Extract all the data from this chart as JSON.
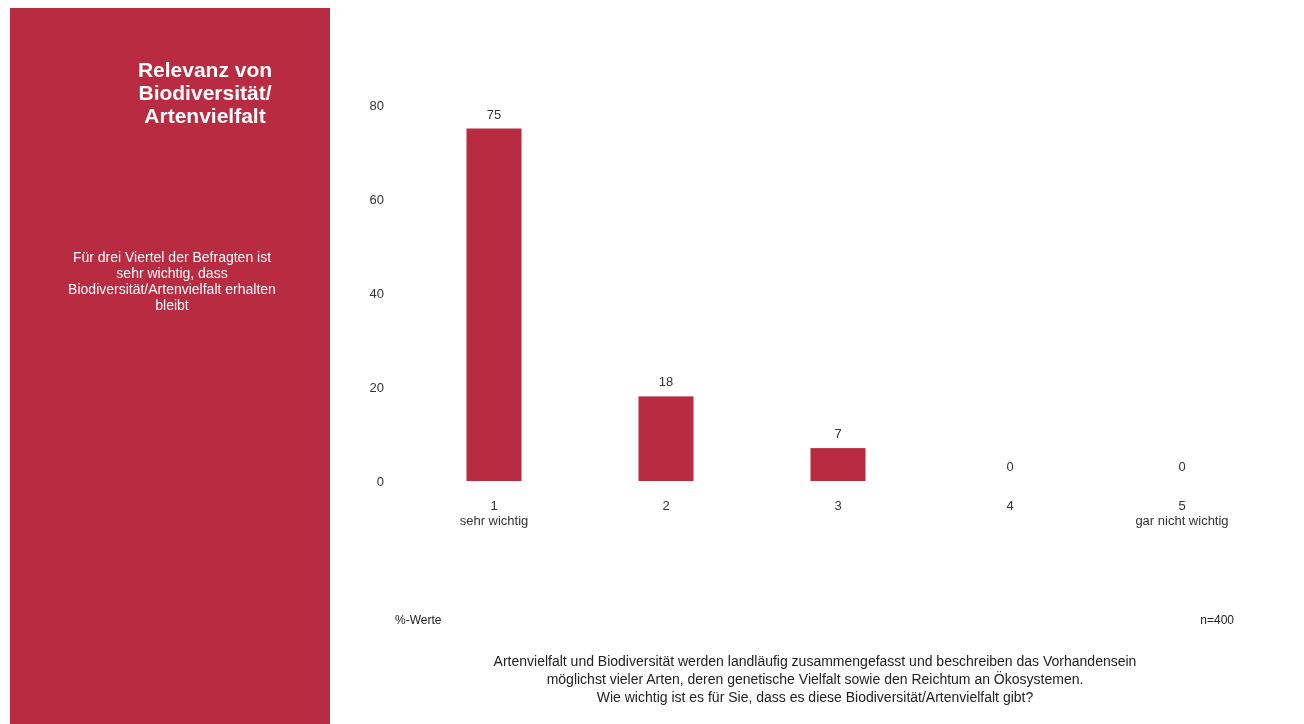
{
  "chart_data": {
    "type": "bar",
    "title": "Relevanz von\nBiodiversität/\nArtenvielfalt",
    "subtitle": "Für drei Viertel der Befragten ist\nsehr wichtig, dass\nBiodiversität/Artenvielfalt erhalten\nbleibt",
    "categories": [
      "1\nsehr wichtig",
      "2",
      "3",
      "4",
      "5\ngar nicht wichtig"
    ],
    "values": [
      75,
      18,
      7,
      0,
      0
    ],
    "color": "#b82b40",
    "ylim": [
      0,
      80
    ],
    "yticks": [
      0,
      20,
      40,
      60,
      80
    ],
    "grid": false,
    "data_labels": true,
    "annotations": [
      "%-Werte",
      "n=400",
      "Artenvielfalt und Biodiversität werden landläufig zusammengefasst und beschreiben das Vorhandensein\nmöglichst vieler Arten, deren genetische Vielfalt sowie den Reichtum an Ökosystemen.\nWie wichtig ist es für Sie, dass es diese Biodiversität/Artenvielfalt gibt?"
    ]
  }
}
